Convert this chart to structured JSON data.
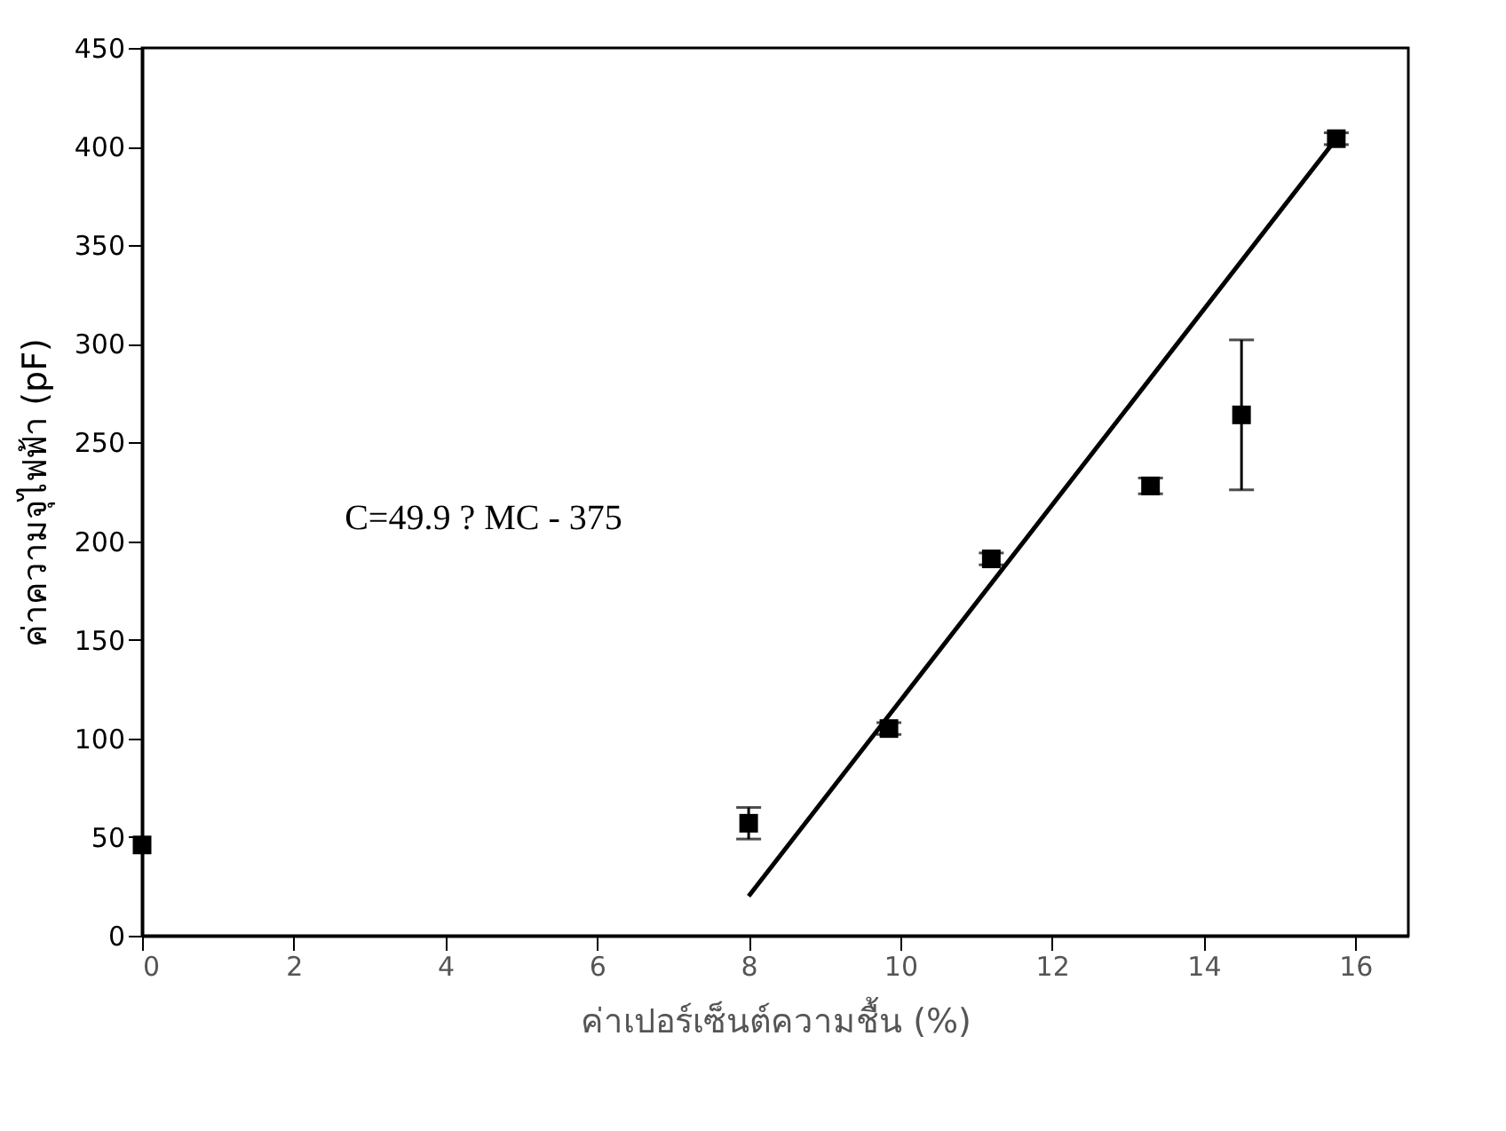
{
  "chart_data": {
    "type": "scatter",
    "xlabel": "ค่าเปอร์เซ็นต์ความชื้น (%)",
    "ylabel": "ค่าความจุไฟฟ้า (pF)",
    "xlim": [
      0,
      16.7
    ],
    "xticks": [
      0,
      2,
      4,
      6,
      8,
      10,
      12,
      14,
      16
    ],
    "ylim": [
      0,
      450
    ],
    "yticks": [
      0,
      50,
      100,
      150,
      200,
      250,
      300,
      350,
      400,
      450
    ],
    "grid": false,
    "marker": "square",
    "series": [
      {
        "color": "#000000",
        "x": [
          0,
          8.0,
          9.85,
          11.2,
          13.3,
          14.5,
          15.75
        ],
        "values": [
          46,
          57,
          105,
          191,
          228,
          264,
          404
        ],
        "errors": [
          null,
          8,
          3,
          3,
          4,
          38,
          3
        ]
      },
      {
        "type": "line",
        "color": "#000000",
        "line_style": "solid",
        "marker": "none",
        "x": [
          8.0,
          15.75
        ],
        "values": [
          20,
          404
        ]
      }
    ],
    "annotations": [
      "C=49.9 ? MC - 375"
    ]
  }
}
